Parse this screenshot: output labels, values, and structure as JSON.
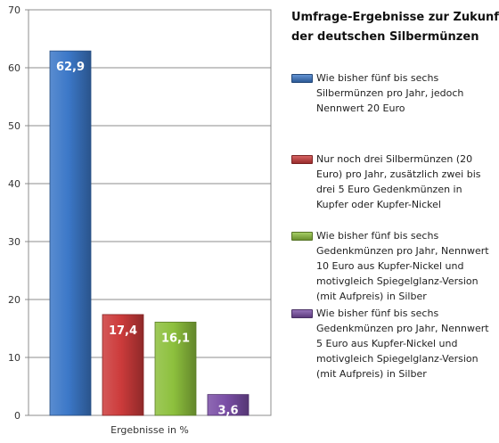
{
  "chart_data": {
    "type": "bar",
    "title_lines": [
      "Umfrage-Ergebnisse zur Zukunft",
      "der deutschen Silbermünzen"
    ],
    "xlabel": "Ergebnisse in %",
    "ylabel": "",
    "ylim": [
      0,
      70
    ],
    "yticks": [
      "0",
      "10",
      "20",
      "30",
      "40",
      "50",
      "60",
      "70"
    ],
    "grid": true,
    "legend_position": "right",
    "series": [
      {
        "name_lines": [
          "Wie bisher fünf bis sechs",
          "Silbermünzen pro Jahr, jedoch",
          "Nennwert 20 Euro"
        ],
        "value": 62.9,
        "value_label": "62,9",
        "color": "#3c78c8"
      },
      {
        "name_lines": [
          "Nur noch drei Silbermünzen (20",
          "Euro) pro Jahr, zusätzlich zwei bis",
          "drei 5 Euro Gedenkmünzen in",
          "Kupfer oder Kupfer-Nickel"
        ],
        "value": 17.4,
        "value_label": "17,4",
        "color": "#cc3b3b"
      },
      {
        "name_lines": [
          "Wie bisher fünf bis sechs",
          "Gedenkmünzen pro Jahr, Nennwert",
          "10 Euro aus Kupfer-Nickel und",
          "motivgleich Spiegelglanz-Version",
          "(mit Aufpreis) in Silber"
        ],
        "value": 16.1,
        "value_label": "16,1",
        "color": "#8dc03d"
      },
      {
        "name_lines": [
          "Wie bisher fünf bis sechs",
          "Gedenkmünzen pro Jahr, Nennwert",
          "5 Euro aus Kupfer-Nickel und",
          "motivgleich Spiegelglanz-Version",
          "(mit Aufpreis) in Silber"
        ],
        "value": 3.6,
        "value_label": "3,6",
        "color": "#7a4ea6"
      }
    ]
  }
}
